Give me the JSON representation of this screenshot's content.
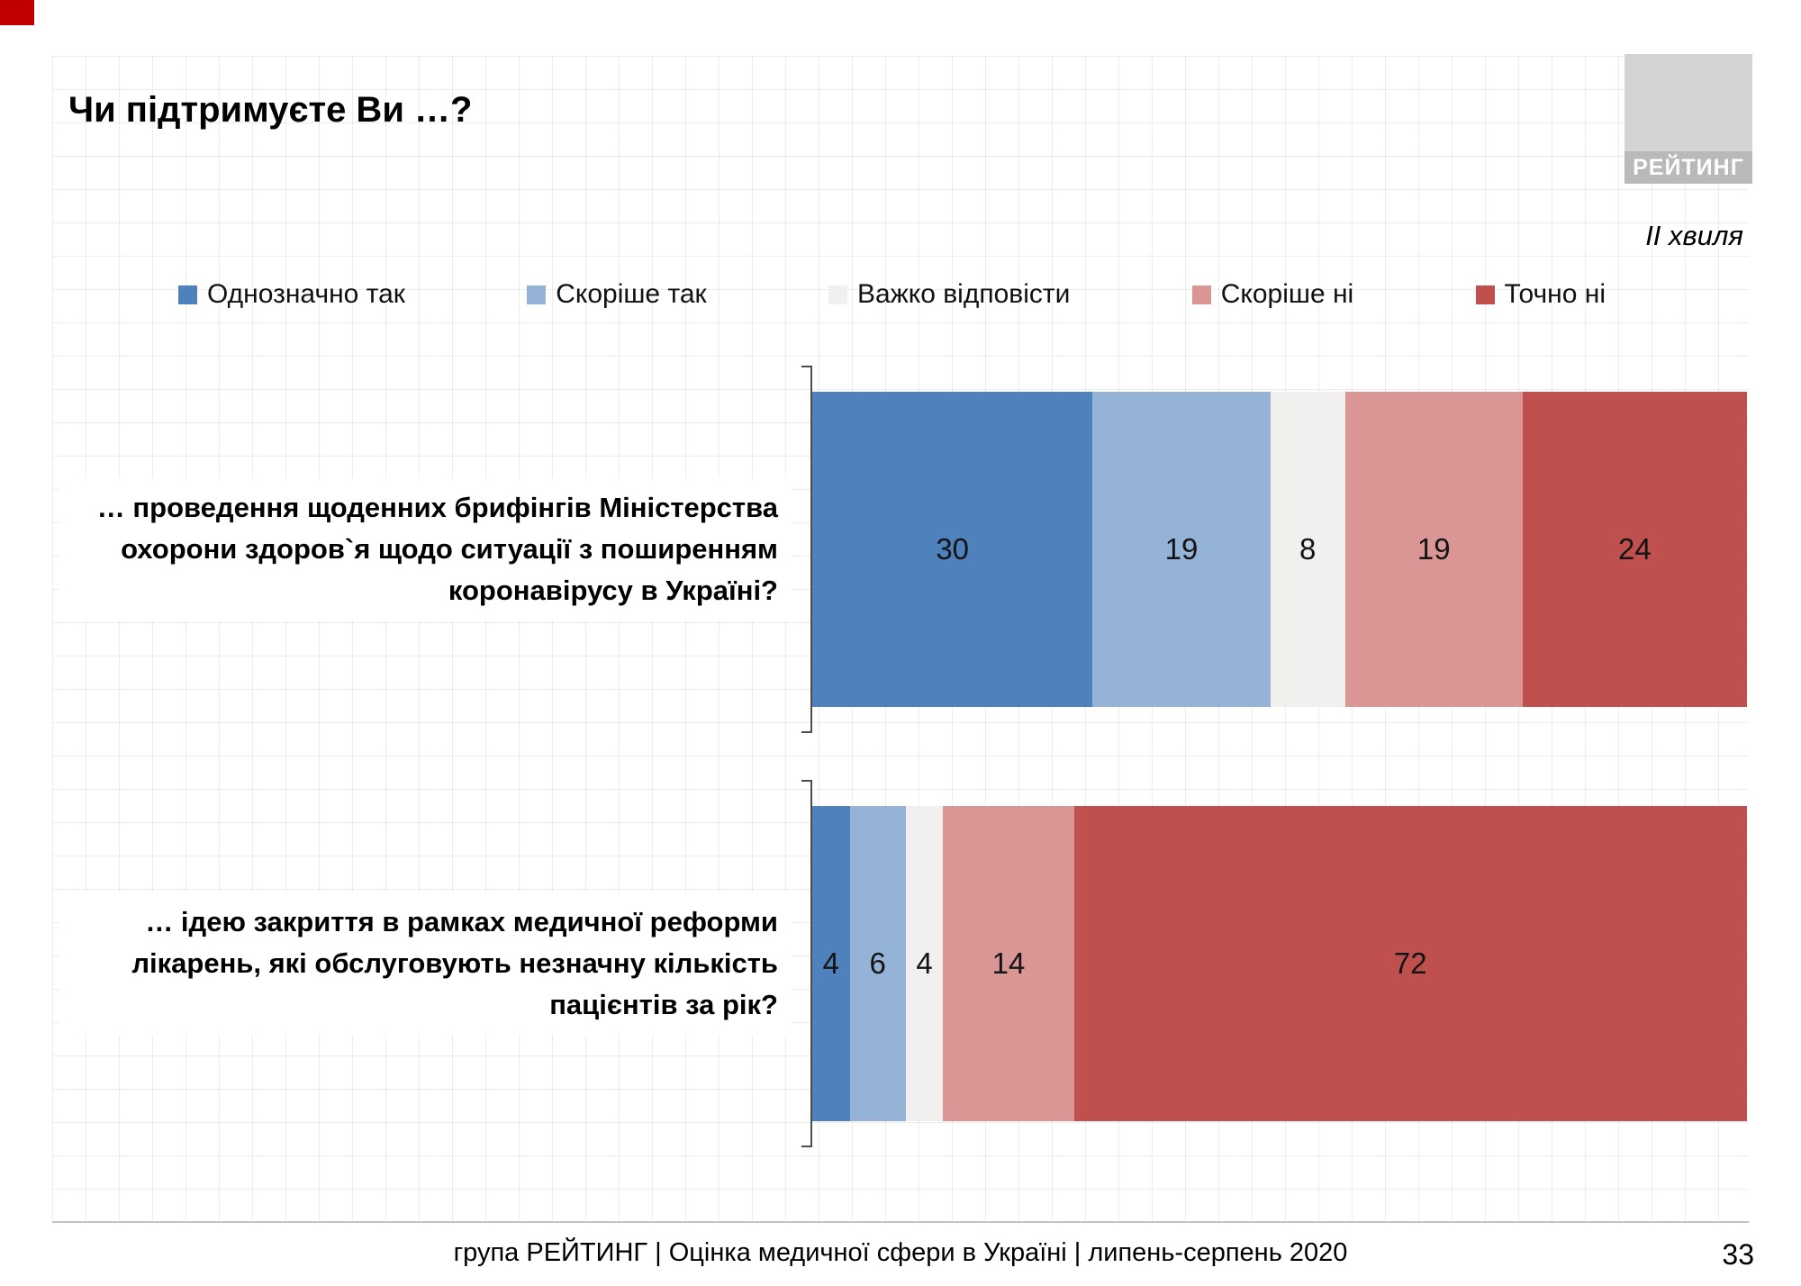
{
  "page": {
    "title": "Чи підтримуєте Ви …?",
    "logo_text": "РЕЙТИНГ",
    "wave": "ІІ хвиля",
    "footer": "група РЕЙТИНГ  |  Оцінка медичної сфери в Україні  | липень-серпень 2020",
    "page_number": "33"
  },
  "chart_data": {
    "type": "bar",
    "stacked": true,
    "orientation": "horizontal",
    "legend_position": "top",
    "xlim": [
      0,
      100
    ],
    "grid": true,
    "categories": [
      "… проведення щоденних брифінгів Міністерства охорони здоров`я щодо ситуації з поширенням коронавірусу в Україні?",
      "… ідею закриття в рамках медичної реформи лікарень, які обслуговують незначну кількість пацієнтів за рік?"
    ],
    "series": [
      {
        "name": "Однозначно так",
        "color": "#4f81bd",
        "values": [
          30,
          4
        ]
      },
      {
        "name": "Скоріше  так",
        "color": "#95b3d7",
        "values": [
          19,
          6
        ]
      },
      {
        "name": "Важко відповісти",
        "color": "#f1f0ee",
        "values": [
          8,
          4
        ]
      },
      {
        "name": "Скоріше  ні",
        "color": "#d99694",
        "values": [
          19,
          14
        ]
      },
      {
        "name": "Точно ні",
        "color": "#c0504d",
        "values": [
          24,
          72
        ]
      }
    ]
  }
}
